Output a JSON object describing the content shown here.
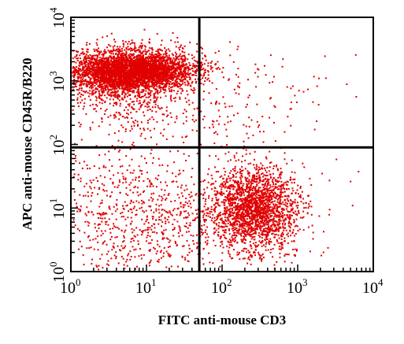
{
  "chart_data": {
    "type": "scatter",
    "title": "",
    "xlabel": "FITC anti-mouse CD3",
    "ylabel": "APC anti-mouse CD45R/B220",
    "xscale": "log",
    "yscale": "log",
    "xlim": [
      1,
      10000
    ],
    "ylim": [
      1,
      10000
    ],
    "x_ticks": [
      {
        "base": "10",
        "exp": "0",
        "value": 1
      },
      {
        "base": "10",
        "exp": "1",
        "value": 10
      },
      {
        "base": "10",
        "exp": "2",
        "value": 100
      },
      {
        "base": "10",
        "exp": "3",
        "value": 1000
      },
      {
        "base": "10",
        "exp": "4",
        "value": 10000
      }
    ],
    "y_ticks": [
      {
        "base": "10",
        "exp": "0",
        "value": 1
      },
      {
        "base": "10",
        "exp": "1",
        "value": 10
      },
      {
        "base": "10",
        "exp": "2",
        "value": 100
      },
      {
        "base": "10",
        "exp": "3",
        "value": 1000
      },
      {
        "base": "10",
        "exp": "4",
        "value": 10000
      }
    ],
    "gates": {
      "x": 50,
      "y": 90
    },
    "point_color": "#e00000",
    "populations": [
      {
        "quadrant": "upper-left",
        "center": [
          6,
          1400
        ],
        "density": "very high"
      },
      {
        "quadrant": "lower-right",
        "center": [
          260,
          10
        ],
        "density": "high"
      },
      {
        "quadrant": "lower-left",
        "center": [
          6,
          10
        ],
        "density": "low"
      },
      {
        "quadrant": "upper-right",
        "center": [
          300,
          500
        ],
        "density": "sparse"
      }
    ]
  }
}
